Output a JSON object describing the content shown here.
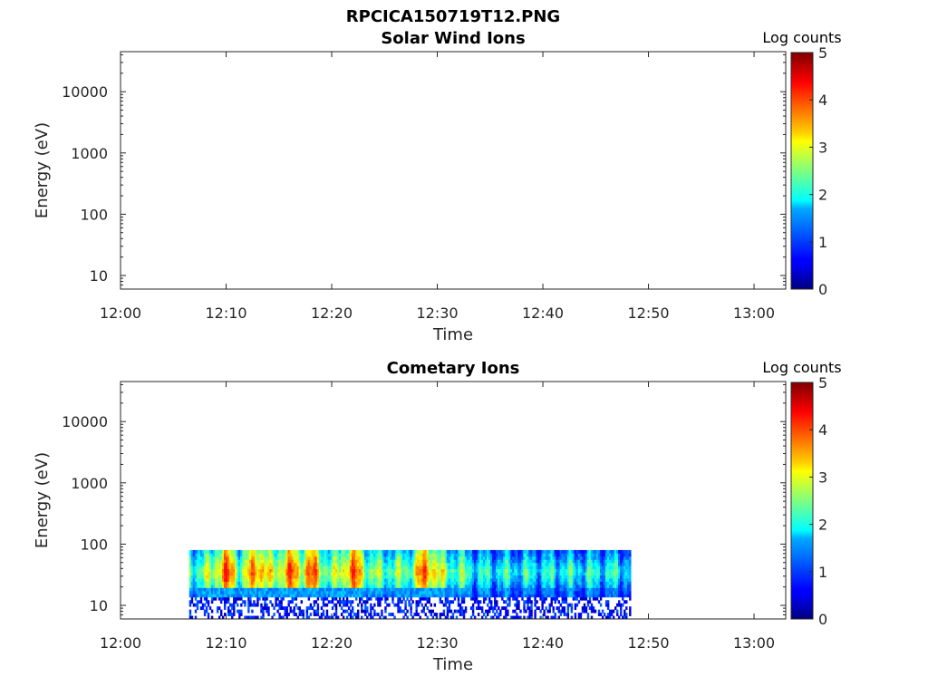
{
  "figure_title": "RPCICA150719T12.PNG",
  "chart_data": [
    {
      "type": "heatmap",
      "title": "Solar Wind Ions",
      "xlabel": "Time",
      "ylabel": "Energy (eV)",
      "yscale": "log",
      "ylim": [
        6,
        45000
      ],
      "xlim": [
        "12:00",
        "13:03"
      ],
      "x_ticks": [
        "12:00",
        "12:10",
        "12:20",
        "12:30",
        "12:40",
        "12:50",
        "13:00"
      ],
      "y_ticks": [
        10,
        100,
        1000,
        10000
      ],
      "y_tick_labels": [
        "10",
        "100",
        "1000",
        "10000"
      ],
      "colorbar": {
        "label": "Log counts",
        "min": 0,
        "max": 5,
        "ticks": [
          "0",
          "1",
          "2",
          "3",
          "4",
          "5"
        ],
        "colormap": "jet"
      },
      "data": null,
      "grid": false
    },
    {
      "type": "heatmap",
      "title": "Cometary Ions",
      "xlabel": "Time",
      "ylabel": "Energy (eV)",
      "yscale": "log",
      "ylim": [
        6,
        45000
      ],
      "xlim": [
        "12:00",
        "13:03"
      ],
      "x_ticks": [
        "12:00",
        "12:10",
        "12:20",
        "12:30",
        "12:40",
        "12:50",
        "13:00"
      ],
      "y_ticks": [
        10,
        100,
        1000,
        10000
      ],
      "y_tick_labels": [
        "10",
        "100",
        "1000",
        "10000"
      ],
      "colorbar": {
        "label": "Log counts",
        "min": 0,
        "max": 5,
        "ticks": [
          "0",
          "1",
          "2",
          "3",
          "4",
          "5"
        ],
        "colormap": "jet"
      },
      "data": {
        "time_range": [
          "12:06:30",
          "12:48:20"
        ],
        "energy_range": [
          6,
          80
        ],
        "peak_energy": 35,
        "peak_log_counts": 4.3,
        "peak_times": [
          "12:10",
          "12:13",
          "12:16",
          "12:18",
          "12:22",
          "12:29"
        ]
      },
      "grid": false
    }
  ]
}
